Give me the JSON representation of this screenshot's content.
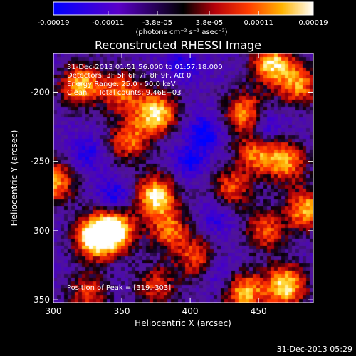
{
  "chart_data": {
    "type": "heatmap",
    "title": "Reconstructed RHESSI Image",
    "xlabel": "Heliocentric X (arcsec)",
    "ylabel": "Heliocentric Y (arcsec)",
    "xlim": [
      300,
      490
    ],
    "ylim": [
      -352,
      -172
    ],
    "xticks": [
      300,
      350,
      400,
      450
    ],
    "yticks": [
      -200,
      -250,
      -300,
      -350
    ],
    "colorbar": {
      "tick_labels": [
        "-0.00019",
        "-0.00011",
        "-3.8e-05",
        "3.8e-05",
        "0.00011",
        "0.00019"
      ],
      "tick_values": [
        -0.00019,
        -0.00011,
        -3.8e-05,
        3.8e-05,
        0.00011,
        0.00019
      ],
      "range": [
        -0.00019,
        0.00019
      ],
      "unit_label": "(photons cm⁻² s⁻¹ asec⁻²)"
    },
    "annotations": [
      "31-Dec-2013 01:51:56.000 to 01:57:18.000",
      "Detectors: 3F 5F 6F 7F 8F 9F, Att 0",
      "Energy Range: 25.0 - 50.0 keV",
      "Clean     Total counts: 9.46E+03"
    ],
    "peak_label": "Position of Peak = [319,-303]",
    "peak": [
      319,
      -303
    ],
    "hot_regions": [
      {
        "x": 330,
        "y": -305,
        "peak": 1.0
      },
      {
        "x": 345,
        "y": -300,
        "peak": 0.95
      },
      {
        "x": 375,
        "y": -275,
        "peak": 0.9
      },
      {
        "x": 300,
        "y": -265,
        "peak": 0.75
      },
      {
        "x": 385,
        "y": -300,
        "peak": 0.6
      },
      {
        "x": 375,
        "y": -215,
        "peak": 0.9
      },
      {
        "x": 355,
        "y": -235,
        "peak": 0.6
      },
      {
        "x": 320,
        "y": -195,
        "peak": 0.8
      },
      {
        "x": 350,
        "y": -200,
        "peak": 0.6
      },
      {
        "x": 460,
        "y": -180,
        "peak": 0.85
      },
      {
        "x": 480,
        "y": -195,
        "peak": 0.65
      },
      {
        "x": 440,
        "y": -215,
        "peak": 0.7
      },
      {
        "x": 448,
        "y": -245,
        "peak": 0.6
      },
      {
        "x": 430,
        "y": -270,
        "peak": 0.55
      },
      {
        "x": 470,
        "y": -250,
        "peak": 0.7
      },
      {
        "x": 485,
        "y": -285,
        "peak": 0.75
      },
      {
        "x": 455,
        "y": -300,
        "peak": 0.55
      },
      {
        "x": 470,
        "y": -340,
        "peak": 0.9
      },
      {
        "x": 440,
        "y": -345,
        "peak": 0.75
      },
      {
        "x": 405,
        "y": -320,
        "peak": 0.55
      },
      {
        "x": 325,
        "y": -345,
        "peak": 0.5
      },
      {
        "x": 375,
        "y": -340,
        "peak": 0.5
      }
    ],
    "cold_regions": [
      {
        "x": 410,
        "y": -230,
        "depth": 0.9
      },
      {
        "x": 400,
        "y": -250,
        "depth": 0.7
      },
      {
        "x": 455,
        "y": -225,
        "depth": 0.7
      },
      {
        "x": 345,
        "y": -275,
        "depth": 0.75
      },
      {
        "x": 325,
        "y": -245,
        "depth": 0.6
      },
      {
        "x": 395,
        "y": -180,
        "depth": 0.6
      },
      {
        "x": 420,
        "y": -290,
        "depth": 0.55
      },
      {
        "x": 420,
        "y": -330,
        "depth": 0.5
      }
    ]
  },
  "footer": {
    "timestamp": "31-Dec-2013 05:29"
  }
}
